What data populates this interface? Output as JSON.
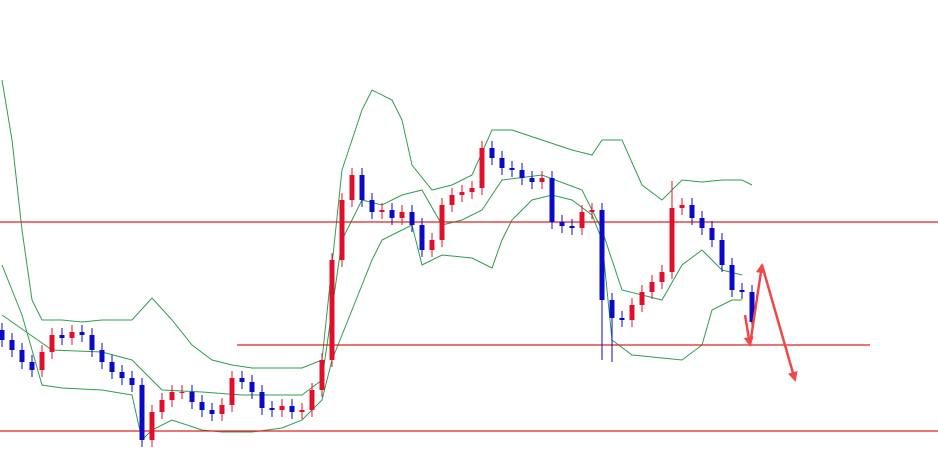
{
  "chart_data": {
    "type": "candlestick",
    "xlim": [
      -0.2,
      93.6
    ],
    "ylim": [
      0,
      461
    ],
    "up_color": "#e0102c",
    "down_color": "#0a0ac8",
    "candles": {
      "x": [
        0,
        1,
        2,
        3,
        4,
        5,
        6,
        7,
        8,
        9,
        10,
        11,
        12,
        13,
        14,
        15,
        16,
        17,
        18,
        19,
        20,
        21,
        22,
        23,
        24,
        25,
        26,
        27,
        28,
        29,
        30,
        31,
        32,
        33,
        34,
        35,
        36,
        37,
        38,
        39,
        40,
        41,
        42,
        43,
        44,
        45,
        46,
        47,
        48,
        49,
        50,
        51,
        52,
        53,
        54,
        55,
        56,
        57,
        58,
        59,
        60,
        61,
        62,
        63,
        64,
        65,
        66,
        67,
        68,
        69,
        70,
        71,
        72,
        73,
        74,
        75
      ],
      "open": [
        131,
        121,
        111,
        99,
        91,
        109,
        126,
        123,
        129,
        126,
        111,
        99,
        89,
        83,
        76,
        21,
        49,
        61,
        69,
        69,
        59,
        51,
        47,
        56,
        83,
        79,
        69,
        53,
        51,
        55,
        49,
        51,
        71,
        101,
        201,
        261,
        286,
        261,
        249,
        251,
        243,
        249,
        236,
        211,
        221,
        256,
        266,
        269,
        273,
        313,
        303,
        293,
        291,
        283,
        279,
        283,
        239,
        235,
        233,
        249,
        251,
        161,
        143,
        141,
        156,
        169,
        179,
        189,
        253,
        256,
        243,
        233,
        221,
        196,
        171,
        169
      ],
      "high": [
        138,
        128,
        118,
        106,
        116,
        133,
        133,
        136,
        136,
        133,
        118,
        106,
        96,
        90,
        83,
        56,
        68,
        76,
        76,
        76,
        66,
        58,
        63,
        90,
        90,
        86,
        76,
        60,
        62,
        62,
        58,
        78,
        108,
        208,
        268,
        293,
        293,
        268,
        258,
        258,
        256,
        256,
        243,
        228,
        263,
        273,
        276,
        280,
        320,
        320,
        310,
        300,
        298,
        290,
        290,
        290,
        246,
        242,
        256,
        258,
        258,
        168,
        150,
        163,
        176,
        186,
        196,
        280,
        263,
        263,
        250,
        240,
        228,
        203,
        178,
        176
      ],
      "low": [
        114,
        104,
        92,
        84,
        84,
        102,
        116,
        116,
        119,
        104,
        92,
        82,
        76,
        69,
        14,
        14,
        42,
        54,
        62,
        52,
        44,
        40,
        40,
        49,
        72,
        62,
        46,
        44,
        44,
        42,
        42,
        44,
        64,
        94,
        194,
        254,
        254,
        242,
        242,
        236,
        236,
        229,
        204,
        204,
        214,
        249,
        259,
        262,
        266,
        296,
        286,
        284,
        276,
        272,
        272,
        232,
        228,
        226,
        226,
        242,
        101,
        99,
        134,
        134,
        149,
        162,
        172,
        182,
        246,
        236,
        226,
        214,
        189,
        164,
        162,
        132
      ],
      "close": [
        121,
        111,
        99,
        91,
        109,
        126,
        123,
        129,
        126,
        111,
        99,
        89,
        83,
        76,
        21,
        49,
        61,
        69,
        69,
        59,
        51,
        47,
        56,
        83,
        79,
        69,
        53,
        51,
        55,
        49,
        51,
        71,
        101,
        201,
        261,
        286,
        261,
        249,
        251,
        243,
        249,
        236,
        211,
        221,
        256,
        266,
        269,
        273,
        313,
        303,
        293,
        291,
        283,
        279,
        283,
        239,
        235,
        233,
        249,
        251,
        161,
        143,
        141,
        156,
        169,
        179,
        189,
        253,
        256,
        243,
        233,
        221,
        196,
        171,
        169,
        139
      ]
    },
    "bands": {
      "color": "#2e9e50",
      "series": [
        {
          "x": [
            0,
            1,
            2,
            3,
            4,
            6,
            8,
            10,
            13,
            15,
            17,
            19,
            21,
            23,
            25,
            27,
            30,
            32,
            34,
            36,
            37,
            39,
            40,
            41,
            43,
            45,
            47,
            49,
            51,
            54,
            57,
            59,
            60,
            62,
            64,
            66,
            68,
            70,
            72,
            74,
            75
          ],
          "values": [
            381,
            321,
            231,
            161,
            141,
            141,
            139,
            141,
            141,
            163,
            141,
            116,
            101,
            96,
            93,
            93,
            93,
            101,
            291,
            351,
            371,
            361,
            341,
            296,
            271,
            276,
            286,
            331,
            331,
            321,
            311,
            306,
            321,
            321,
            276,
            261,
            281,
            279,
            281,
            281,
            276
          ]
        },
        {
          "x": [
            0,
            5,
            10,
            13,
            16,
            20,
            24,
            30,
            32,
            34,
            36,
            38,
            40,
            42,
            44,
            46,
            48,
            50,
            54,
            58,
            60,
            62,
            66,
            68,
            70,
            72,
            74
          ],
          "values": [
            146,
            111,
            109,
            101,
            71,
            69,
            66,
            66,
            81,
            221,
            261,
            256,
            266,
            271,
            236,
            241,
            251,
            281,
            286,
            271,
            231,
            171,
            161,
            196,
            211,
            191,
            186
          ]
        },
        {
          "x": [
            0,
            2,
            4,
            6,
            10,
            13,
            14,
            15,
            17,
            20,
            22,
            25,
            28,
            30,
            32,
            33,
            35,
            37,
            38,
            40,
            41,
            42,
            44,
            47,
            49,
            50,
            51,
            53,
            55,
            57,
            59,
            60,
            61,
            63,
            66,
            68,
            70,
            71,
            73,
            74
          ],
          "values": [
            196,
            146,
            76,
            73,
            71,
            66,
            21,
            31,
            41,
            31,
            29,
            29,
            33,
            41,
            61,
            101,
            151,
            201,
            221,
            231,
            236,
            196,
            206,
            203,
            193,
            221,
            241,
            261,
            266,
            261,
            246,
            221,
            121,
            106,
            103,
            101,
            116,
            151,
            161,
            161
          ]
        }
      ]
    },
    "levels": {
      "color": "#e02020",
      "values": [
        239,
        116,
        30
      ],
      "from": [
        -0.2,
        23.5,
        -0.2
      ],
      "to": [
        93.6,
        86.8,
        93.6
      ]
    },
    "arrow": {
      "color": "#f04848",
      "x": [
        74.3,
        74.8,
        76,
        79.3
      ],
      "y": [
        146,
        116,
        196,
        81
      ]
    }
  }
}
